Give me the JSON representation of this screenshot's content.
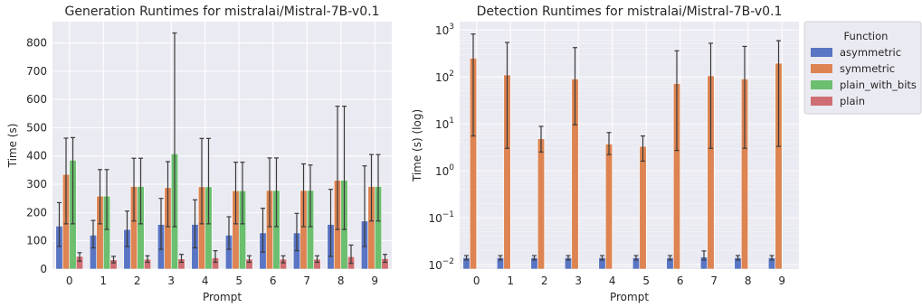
{
  "chart_data": [
    {
      "type": "bar",
      "title": "Generation Runtimes for mistralai/Mistral-7B-v0.1",
      "xlabel": "Prompt",
      "ylabel": "Time (s)",
      "yscale": "linear",
      "ylim": [
        0,
        875
      ],
      "yticks": [
        0,
        100,
        200,
        300,
        400,
        500,
        600,
        700,
        800
      ],
      "categories": [
        "0",
        "1",
        "2",
        "3",
        "4",
        "5",
        "6",
        "7",
        "8",
        "9"
      ],
      "grid": true,
      "series": [
        {
          "name": "asymmetric",
          "color": "#5975c4",
          "values": [
            152,
            120,
            140,
            158,
            158,
            120,
            128,
            128,
            158,
            170
          ],
          "err_low": [
            80,
            75,
            80,
            70,
            75,
            70,
            60,
            65,
            45,
            80
          ],
          "err_high": [
            235,
            172,
            205,
            250,
            245,
            185,
            215,
            197,
            282,
            365
          ]
        },
        {
          "name": "symmetric",
          "color": "#dd8452",
          "values": [
            335,
            258,
            292,
            288,
            291,
            277,
            278,
            278,
            314,
            292
          ],
          "err_low": [
            160,
            160,
            170,
            150,
            160,
            160,
            150,
            150,
            140,
            170
          ],
          "err_high": [
            463,
            352,
            392,
            380,
            462,
            378,
            393,
            372,
            576,
            405
          ]
        },
        {
          "name": "plain_with_bits",
          "color": "#6bbf6e",
          "values": [
            385,
            258,
            292,
            408,
            291,
            277,
            278,
            278,
            314,
            292
          ],
          "err_low": [
            160,
            140,
            160,
            150,
            160,
            160,
            150,
            150,
            140,
            170
          ],
          "err_high": [
            465,
            352,
            392,
            835,
            462,
            378,
            393,
            368,
            576,
            405
          ]
        },
        {
          "name": "plain",
          "color": "#cf6e72",
          "values": [
            45,
            33,
            35,
            36,
            40,
            35,
            35,
            35,
            44,
            37
          ],
          "err_low": [
            28,
            22,
            24,
            24,
            24,
            24,
            22,
            24,
            20,
            24
          ],
          "err_high": [
            58,
            45,
            47,
            52,
            65,
            47,
            47,
            47,
            85,
            52
          ]
        }
      ]
    },
    {
      "type": "bar",
      "title": "Detection Runtimes for mistralai/Mistral-7B-v0.1",
      "xlabel": "Prompt",
      "ylabel": "Time (s) (log)",
      "yscale": "log",
      "ylim": [
        0.008,
        1500
      ],
      "yticks": [
        0.01,
        0.1,
        1,
        10,
        100,
        1000
      ],
      "categories": [
        "0",
        "1",
        "2",
        "3",
        "4",
        "5",
        "6",
        "7",
        "8",
        "9"
      ],
      "grid": true,
      "legend": {
        "title": "Function",
        "placement": "outside-right"
      },
      "series": [
        {
          "name": "asymmetric",
          "color": "#5975c4",
          "values": [
            0.014,
            0.014,
            0.014,
            0.014,
            0.014,
            0.014,
            0.014,
            0.0145,
            0.014,
            0.014
          ],
          "err_low": [
            0.0125,
            0.0125,
            0.0125,
            0.0125,
            0.0125,
            0.0125,
            0.0125,
            0.0125,
            0.0125,
            0.0125
          ],
          "err_high": [
            0.0155,
            0.0155,
            0.0155,
            0.0155,
            0.0155,
            0.0155,
            0.0155,
            0.0195,
            0.0155,
            0.0155
          ]
        },
        {
          "name": "symmetric",
          "color": "#dd8452",
          "values": [
            250,
            110,
            4.8,
            90,
            3.7,
            3.3,
            72,
            105,
            90,
            195
          ],
          "err_low": [
            5.5,
            3,
            2.5,
            9.5,
            2.2,
            1.6,
            2.7,
            3,
            3,
            3.3
          ],
          "err_high": [
            820,
            540,
            8.8,
            420,
            6.5,
            5.5,
            360,
            520,
            445,
            590
          ]
        }
      ]
    }
  ]
}
